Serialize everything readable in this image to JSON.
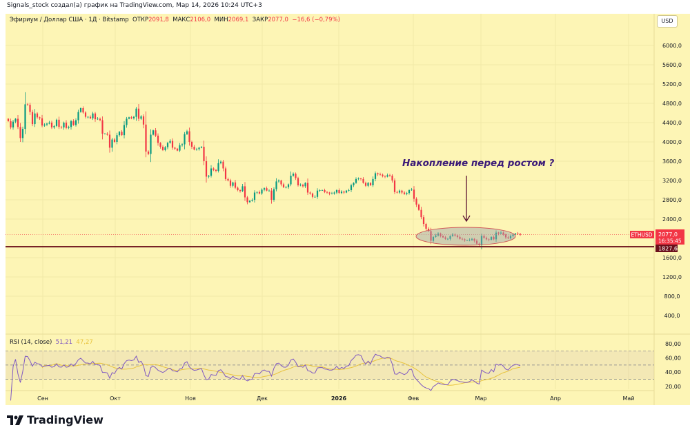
{
  "credit": "Signals_stock создал(а) график на TradingView.com, Мар 14, 2026 10:24 UTC+3",
  "legend": {
    "symbol": "Эфириум / Доллар США · 1Д · Bitstamp",
    "open_label": "ОТКР",
    "open": "2091,8",
    "high_label": "МАКС",
    "high": "2106,0",
    "low_label": "МИН",
    "low": "2069,1",
    "close_label": "ЗАКР",
    "close": "2077,0",
    "change": "−16,6 (−0,79%)"
  },
  "currency_button": "USD",
  "annotation": "Накопление перед ростом ?",
  "price_tag": {
    "symbol": "ETHUSD",
    "price": "2077,0",
    "countdown": "16:35:45"
  },
  "level_tag": "1827,6",
  "rsi_legend": {
    "label": "RSI (14, close)",
    "rsi": "51,21",
    "ma": "47,27"
  },
  "logo": "TradingView",
  "colors": {
    "up": "#089981",
    "down": "#f23645",
    "level": "#6b0f1a",
    "rsi": "#7e57c2",
    "rsi_ma": "#e8c33c",
    "annotation": "#3b1a78",
    "background": "#fdf5b5"
  },
  "chart_data": {
    "type": "candlestick",
    "start_date": "2025-08-14",
    "interval": "1D",
    "closes": [
      4430,
      4300,
      4420,
      4480,
      4310,
      4080,
      4270,
      4780,
      4770,
      4620,
      4370,
      4590,
      4510,
      4490,
      4340,
      4360,
      4380,
      4400,
      4300,
      4330,
      4460,
      4310,
      4300,
      4400,
      4290,
      4310,
      4430,
      4350,
      4450,
      4620,
      4700,
      4610,
      4520,
      4520,
      4490,
      4590,
      4470,
      4480,
      4450,
      4170,
      4170,
      4150,
      3880,
      4050,
      4000,
      4140,
      4210,
      4140,
      4350,
      4480,
      4510,
      4490,
      4520,
      4690,
      4480,
      4530,
      4360,
      3800,
      3750,
      4150,
      4240,
      4130,
      3980,
      3900,
      3830,
      3890,
      3980,
      4020,
      3880,
      3860,
      3820,
      3930,
      3950,
      4160,
      4220,
      4000,
      3900,
      3840,
      3850,
      3880,
      3900,
      3600,
      3280,
      3300,
      3450,
      3420,
      3400,
      3560,
      3590,
      3450,
      3230,
      3200,
      3090,
      3160,
      3050,
      3000,
      2980,
      3080,
      2850,
      2750,
      2780,
      2800,
      2950,
      2960,
      2930,
      3010,
      3040,
      2990,
      2990,
      2800,
      3020,
      3180,
      3200,
      3120,
      3060,
      3060,
      3120,
      3300,
      3340,
      3250,
      3100,
      3110,
      3080,
      3150,
      2950,
      2930,
      2860,
      2860,
      2990,
      3000,
      3000,
      2960,
      2950,
      2930,
      2930,
      2950,
      3000,
      2940,
      2970,
      2950,
      2990,
      3000,
      3100,
      3150,
      3230,
      3240,
      3230,
      3150,
      3090,
      3150,
      3100,
      3230,
      3350,
      3330,
      3320,
      3290,
      3280,
      3310,
      3300,
      3200,
      2960,
      2950,
      2990,
      2950,
      2920,
      2940,
      3000,
      3010,
      2820,
      2700,
      2590,
      2440,
      2300,
      2200,
      2150,
      1950,
      2030,
      2060,
      2100,
      2050,
      2020,
      1990,
      1990,
      2050,
      2080,
      2060,
      2030,
      1990,
      1980,
      1960,
      1960,
      1970,
      1990,
      1950,
      1890,
      1860,
      2050,
      2010,
      1980,
      1970,
      2030,
      1980,
      2120,
      2100,
      2120,
      2080,
      2020,
      2000,
      2050,
      2080,
      2100,
      2091,
      2077
    ],
    "price_axis": {
      "ticks": [
        "6000,0",
        "5600,0",
        "5200,0",
        "4800,0",
        "4400,0",
        "4000,0",
        "3600,0",
        "3200,0",
        "2800,0",
        "2400,0",
        "1600,0",
        "1200,0",
        "800,0",
        "400,0"
      ],
      "scale": "linear"
    },
    "time_axis": {
      "ticks": [
        "Сен",
        "Окт",
        "Ноя",
        "Дек",
        "2026",
        "Фев",
        "Мар",
        "Апр",
        "Май"
      ]
    },
    "horizontal_level": 1827.6,
    "last_price": 2077.0,
    "rsi": {
      "period": 14,
      "bands": [
        70,
        50,
        30
      ],
      "ticks": [
        "80,00",
        "60,00",
        "40,00",
        "20,00"
      ]
    },
    "grid": true
  }
}
